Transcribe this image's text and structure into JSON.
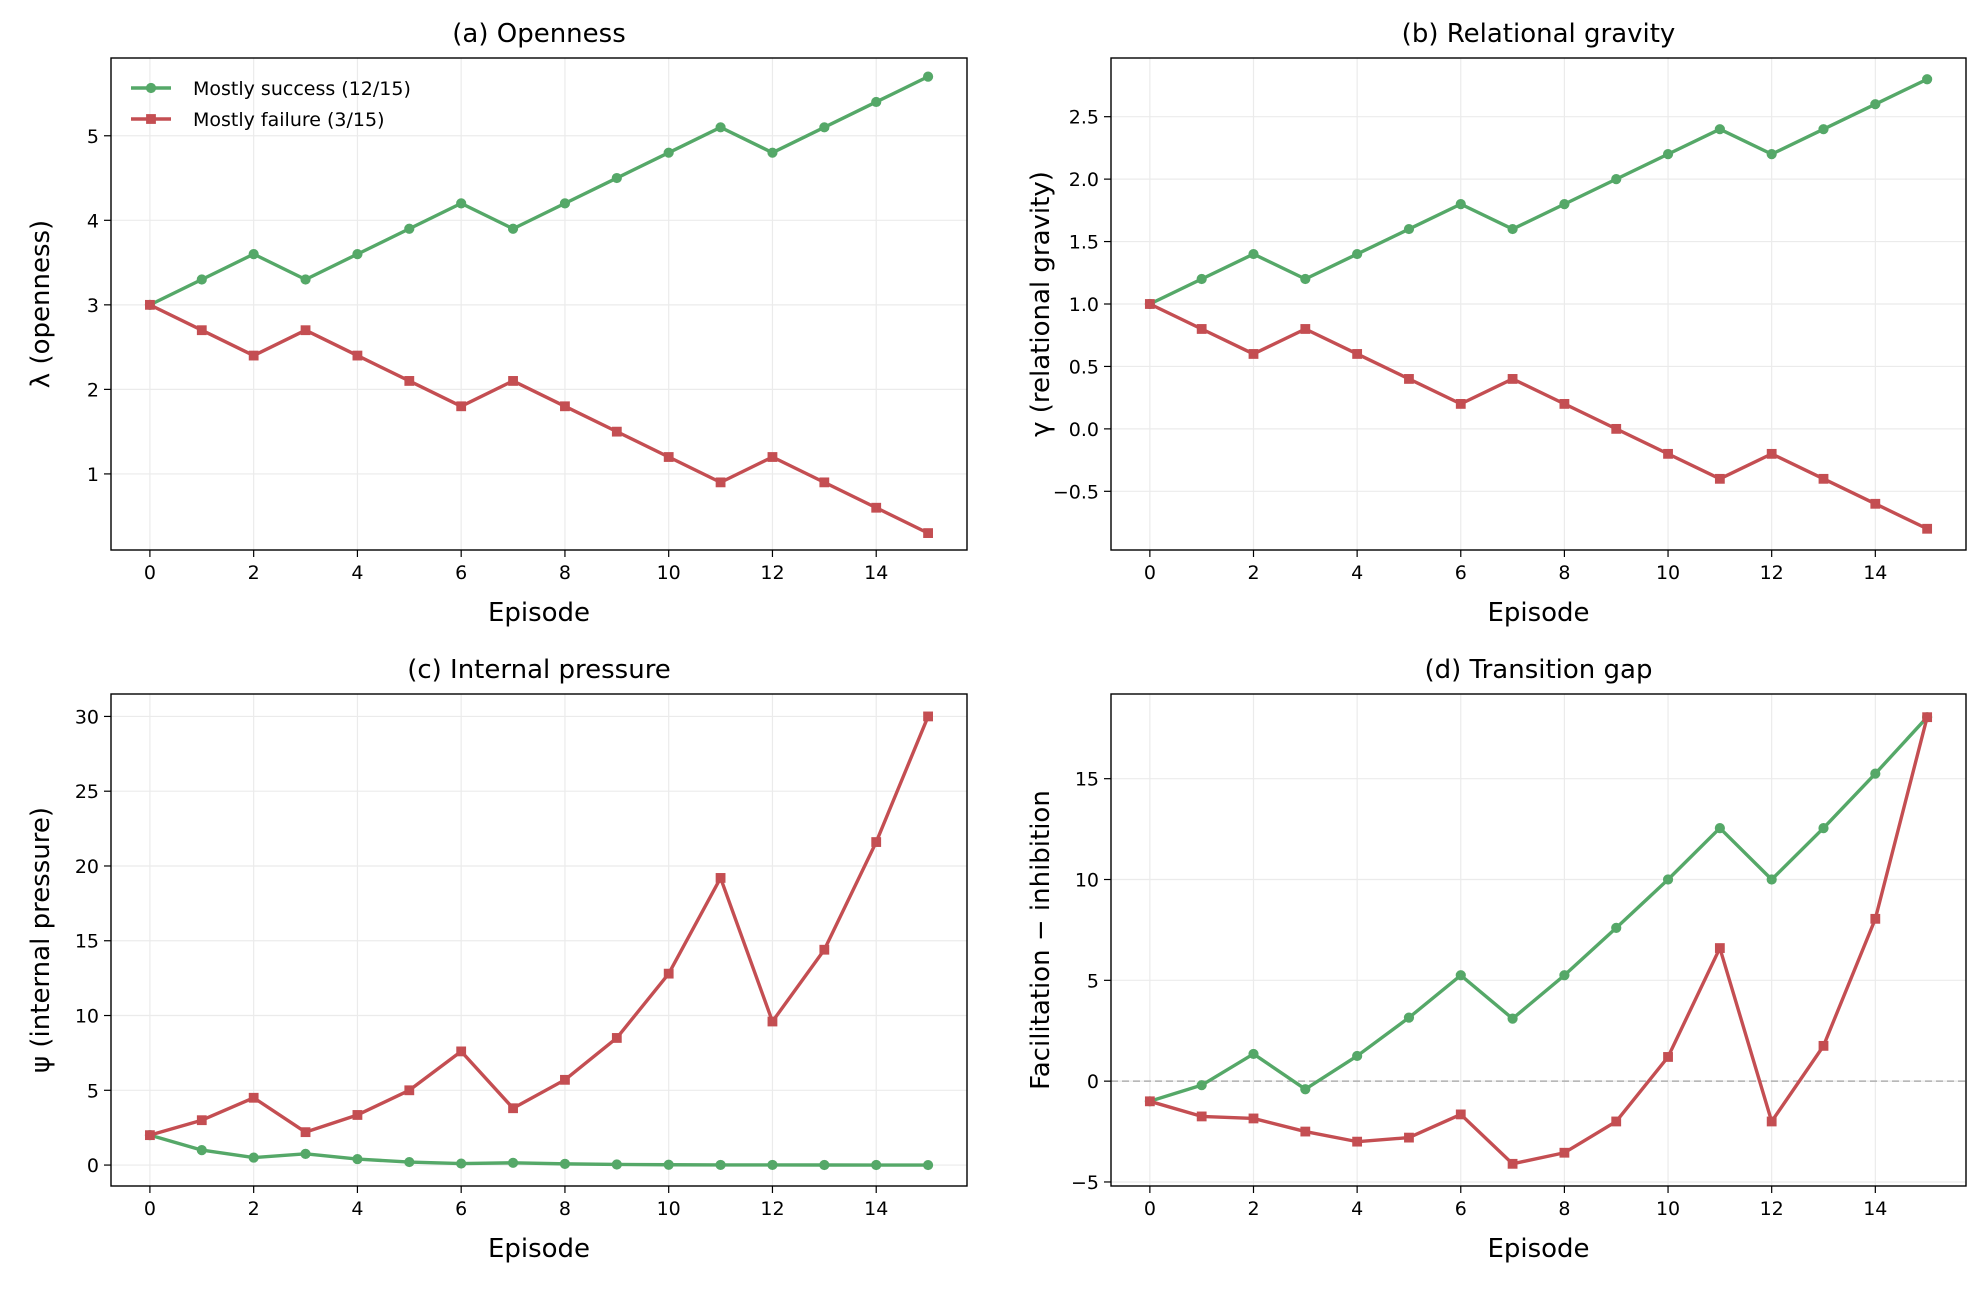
{
  "colors": {
    "success": "#55a868",
    "failure": "#c44e52",
    "grid": "#ebebeb",
    "zero_line": "#b0b0b0"
  },
  "legend": {
    "success_label": "Mostly success (12/15)",
    "failure_label": "Mostly failure (3/15)",
    "location": "upper-left of panel (a)"
  },
  "chart_data": [
    {
      "id": "a",
      "type": "line",
      "title": "(a) Openness",
      "xlabel": "Episode",
      "ylabel": "λ (openness)",
      "x": [
        0,
        1,
        2,
        3,
        4,
        5,
        6,
        7,
        8,
        9,
        10,
        11,
        12,
        13,
        14,
        15
      ],
      "xlim": [
        -0.75,
        15.75
      ],
      "ylim": [
        0.1,
        5.92
      ],
      "xticks": [
        0,
        2,
        4,
        6,
        8,
        10,
        12,
        14
      ],
      "yticks": [
        1,
        2,
        3,
        4,
        5
      ],
      "ytick_labels": [
        "1",
        "2",
        "3",
        "4",
        "5"
      ],
      "grid": true,
      "series": [
        {
          "name": "Mostly success (12/15)",
          "marker": "circle",
          "values": [
            3.0,
            3.3,
            3.6,
            3.3,
            3.6,
            3.9,
            4.2,
            3.9,
            4.2,
            4.5,
            4.8,
            5.1,
            4.8,
            5.1,
            5.4,
            5.7
          ]
        },
        {
          "name": "Mostly failure (3/15)",
          "marker": "square",
          "values": [
            3.0,
            2.7,
            2.4,
            2.7,
            2.4,
            2.1,
            1.8,
            2.1,
            1.8,
            1.5,
            1.2,
            0.9,
            1.2,
            0.9,
            0.6,
            0.3
          ]
        }
      ]
    },
    {
      "id": "b",
      "type": "line",
      "title": "(b) Relational gravity",
      "xlabel": "Episode",
      "ylabel": "γ (relational gravity)",
      "x": [
        0,
        1,
        2,
        3,
        4,
        5,
        6,
        7,
        8,
        9,
        10,
        11,
        12,
        13,
        14,
        15
      ],
      "xlim": [
        -0.75,
        15.75
      ],
      "ylim": [
        -0.97,
        2.97
      ],
      "xticks": [
        0,
        2,
        4,
        6,
        8,
        10,
        12,
        14
      ],
      "yticks": [
        -0.5,
        0.0,
        0.5,
        1.0,
        1.5,
        2.0,
        2.5
      ],
      "ytick_labels": [
        "−0.5",
        "0.0",
        "0.5",
        "1.0",
        "1.5",
        "2.0",
        "2.5"
      ],
      "grid": true,
      "series": [
        {
          "name": "Mostly success (12/15)",
          "marker": "circle",
          "values": [
            1.0,
            1.2,
            1.4,
            1.2,
            1.4,
            1.6,
            1.8,
            1.6,
            1.8,
            2.0,
            2.2,
            2.4,
            2.2,
            2.4,
            2.6,
            2.8
          ]
        },
        {
          "name": "Mostly failure (3/15)",
          "marker": "square",
          "values": [
            1.0,
            0.8,
            0.6,
            0.8,
            0.6,
            0.4,
            0.2,
            0.4,
            0.2,
            0.0,
            -0.2,
            -0.4,
            -0.2,
            -0.4,
            -0.6,
            -0.8
          ]
        }
      ]
    },
    {
      "id": "c",
      "type": "line",
      "title": "(c) Internal pressure",
      "xlabel": "Episode",
      "ylabel": "ψ (internal pressure)",
      "x": [
        0,
        1,
        2,
        3,
        4,
        5,
        6,
        7,
        8,
        9,
        10,
        11,
        12,
        13,
        14,
        15
      ],
      "xlim": [
        -0.75,
        15.75
      ],
      "ylim": [
        -1.4,
        31.5
      ],
      "xticks": [
        0,
        2,
        4,
        6,
        8,
        10,
        12,
        14
      ],
      "yticks": [
        0,
        5,
        10,
        15,
        20,
        25,
        30
      ],
      "ytick_labels": [
        "0",
        "5",
        "10",
        "15",
        "20",
        "25",
        "30"
      ],
      "grid": true,
      "series": [
        {
          "name": "Mostly success (12/15)",
          "marker": "circle",
          "values": [
            2.0,
            1.0,
            0.5,
            0.75,
            0.4,
            0.2,
            0.1,
            0.15,
            0.08,
            0.04,
            0.02,
            0.01,
            0.01,
            0.005,
            0.003,
            0.001
          ]
        },
        {
          "name": "Mostly failure (3/15)",
          "marker": "square",
          "values": [
            2.0,
            3.0,
            4.5,
            2.2,
            3.35,
            5.0,
            7.6,
            3.8,
            5.7,
            8.5,
            12.8,
            19.2,
            9.6,
            14.4,
            21.6,
            30.0
          ]
        }
      ]
    },
    {
      "id": "d",
      "type": "line",
      "title": "(d) Transition gap",
      "xlabel": "Episode",
      "ylabel": "Facilitation − inhibition",
      "x": [
        0,
        1,
        2,
        3,
        4,
        5,
        6,
        7,
        8,
        9,
        10,
        11,
        12,
        13,
        14,
        15
      ],
      "xlim": [
        -0.75,
        15.75
      ],
      "ylim": [
        -5.2,
        19.2
      ],
      "xticks": [
        0,
        2,
        4,
        6,
        8,
        10,
        12,
        14
      ],
      "yticks": [
        -5,
        0,
        5,
        10,
        15
      ],
      "ytick_labels": [
        "−5",
        "0",
        "5",
        "10",
        "15"
      ],
      "grid": true,
      "hline": 0,
      "series": [
        {
          "name": "Mostly success (12/15)",
          "marker": "circle",
          "values": [
            -1.0,
            -0.2,
            1.35,
            -0.4,
            1.25,
            3.15,
            5.25,
            3.1,
            5.25,
            7.6,
            10.0,
            12.55,
            10.0,
            12.55,
            15.25,
            18.05
          ]
        },
        {
          "name": "Mostly failure (3/15)",
          "marker": "square",
          "values": [
            -1.0,
            -1.75,
            -1.85,
            -2.5,
            -3.0,
            -2.8,
            -1.65,
            -4.1,
            -3.55,
            -2.0,
            1.2,
            6.6,
            -2.0,
            1.75,
            8.05,
            18.05
          ]
        }
      ]
    }
  ]
}
